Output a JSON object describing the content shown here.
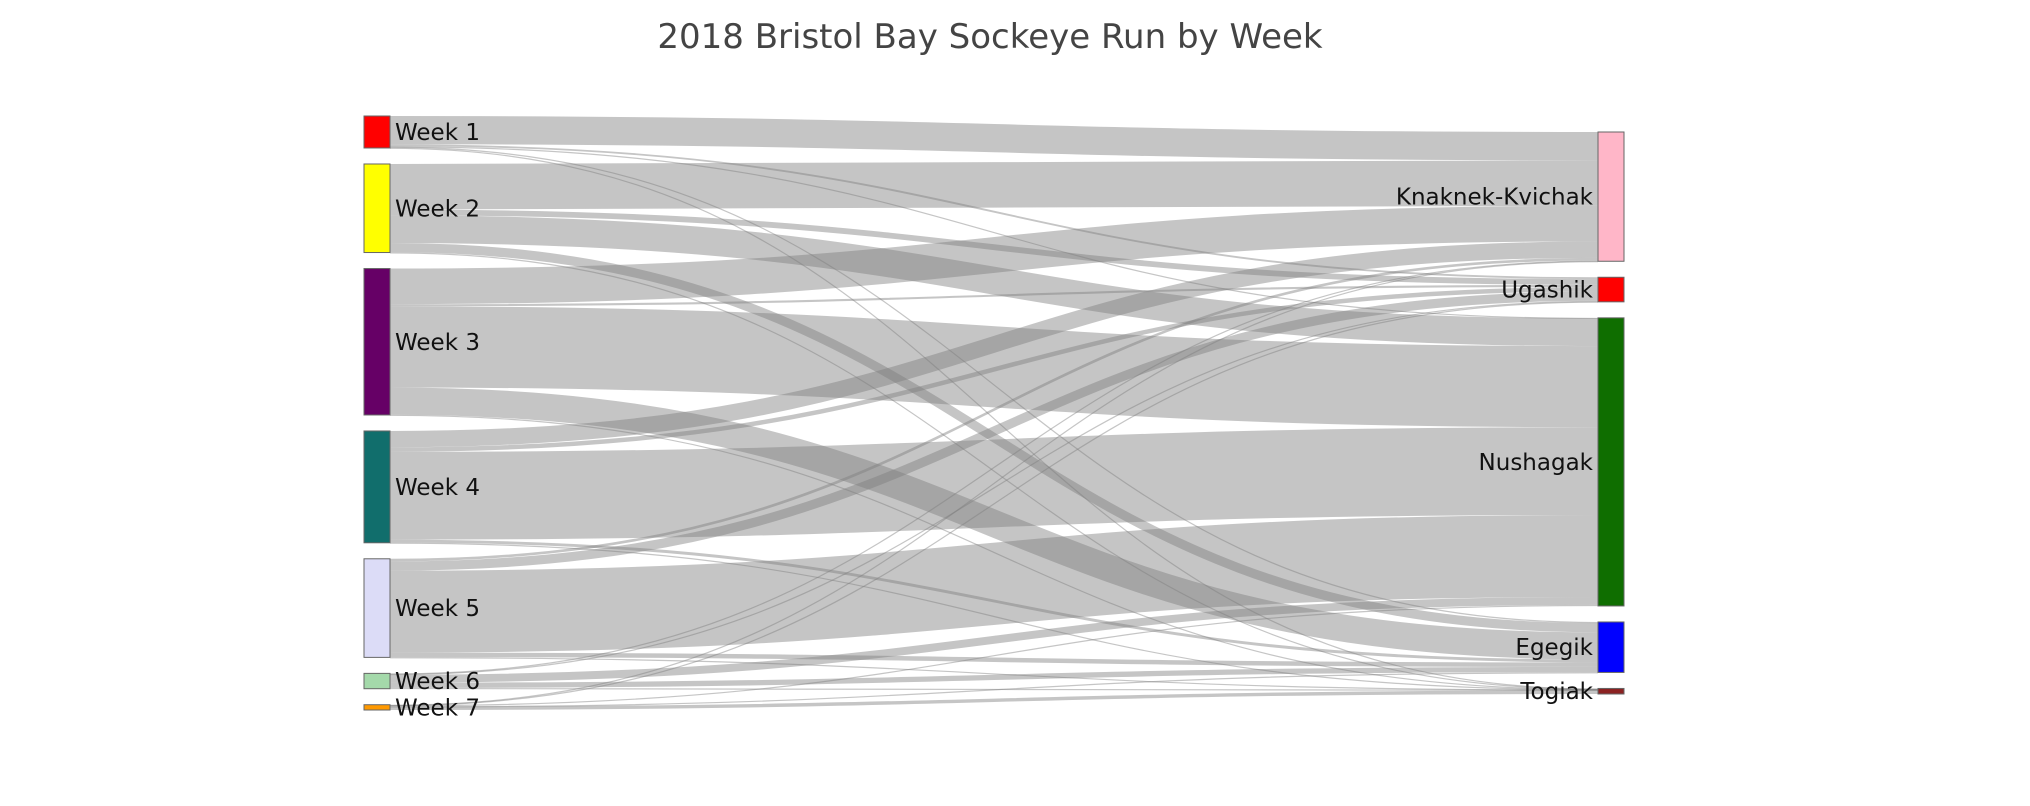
{
  "chart_data": {
    "type": "sankey",
    "title": "2018 Bristol Bay Sockeye Run by Week",
    "unit": "",
    "sources": [
      {
        "name": "Week 1",
        "color": "#ff0000"
      },
      {
        "name": "Week 2",
        "color": "#ffff00"
      },
      {
        "name": "Week 3",
        "color": "#660066"
      },
      {
        "name": "Week 4",
        "color": "#116e6c"
      },
      {
        "name": "Week 5",
        "color": "#dcdcf7"
      },
      {
        "name": "Week 6",
        "color": "#a4d9aa"
      },
      {
        "name": "Week 7",
        "color": "#ff9900"
      }
    ],
    "targets": [
      {
        "name": "Knaknek-Kvichak",
        "color": "#ffb6c8"
      },
      {
        "name": "Ugashik",
        "color": "#ff0000"
      },
      {
        "name": "Nushagak",
        "color": "#0f6e00"
      },
      {
        "name": "Egegik",
        "color": "#0000ff"
      },
      {
        "name": "Togiak",
        "color": "#8b2222"
      }
    ],
    "links": [
      {
        "source": "Week 1",
        "target": "Knaknek-Kvichak",
        "value": 1.07
      },
      {
        "source": "Week 1",
        "target": "Ugashik",
        "value": 0.07
      },
      {
        "source": "Week 1",
        "target": "Nushagak",
        "value": 0.02
      },
      {
        "source": "Week 1",
        "target": "Egegik",
        "value": 0.04
      },
      {
        "source": "Week 1",
        "target": "Togiak",
        "value": 0.01
      },
      {
        "source": "Week 2",
        "target": "Knaknek-Kvichak",
        "value": 1.72
      },
      {
        "source": "Week 2",
        "target": "Ugashik",
        "value": 0.22
      },
      {
        "source": "Week 2",
        "target": "Nushagak",
        "value": 1.05
      },
      {
        "source": "Week 2",
        "target": "Egegik",
        "value": 0.35
      },
      {
        "source": "Week 2",
        "target": "Togiak",
        "value": 0.01
      },
      {
        "source": "Week 3",
        "target": "Knaknek-Kvichak",
        "value": 1.35
      },
      {
        "source": "Week 3",
        "target": "Ugashik",
        "value": 0.08
      },
      {
        "source": "Week 3",
        "target": "Nushagak",
        "value": 3.07
      },
      {
        "source": "Week 3",
        "target": "Egegik",
        "value": 1.03
      },
      {
        "source": "Week 3",
        "target": "Togiak",
        "value": 0.01
      },
      {
        "source": "Week 4",
        "target": "Knaknek-Kvichak",
        "value": 0.62
      },
      {
        "source": "Week 4",
        "target": "Ugashik",
        "value": 0.17
      },
      {
        "source": "Week 4",
        "target": "Nushagak",
        "value": 3.32
      },
      {
        "source": "Week 4",
        "target": "Egegik",
        "value": 0.11
      },
      {
        "source": "Week 4",
        "target": "Togiak",
        "value": 0.01
      },
      {
        "source": "Week 5",
        "target": "Knaknek-Kvichak",
        "value": 0.1
      },
      {
        "source": "Week 5",
        "target": "Ugashik",
        "value": 0.35
      },
      {
        "source": "Week 5",
        "target": "Nushagak",
        "value": 3.1
      },
      {
        "source": "Week 5",
        "target": "Egegik",
        "value": 0.17
      },
      {
        "source": "Week 5",
        "target": "Togiak",
        "value": 0.01
      },
      {
        "source": "Week 6",
        "target": "Knaknek-Kvichak",
        "value": 0.02
      },
      {
        "source": "Week 6",
        "target": "Ugashik",
        "value": 0.03
      },
      {
        "source": "Week 6",
        "target": "Nushagak",
        "value": 0.3
      },
      {
        "source": "Week 6",
        "target": "Egegik",
        "value": 0.2
      },
      {
        "source": "Week 6",
        "target": "Togiak",
        "value": 0.03
      },
      {
        "source": "Week 7",
        "target": "Knaknek-Kvichak",
        "value": 0.01
      },
      {
        "source": "Week 7",
        "target": "Ugashik",
        "value": 0.01
      },
      {
        "source": "Week 7",
        "target": "Nushagak",
        "value": 0.04
      },
      {
        "source": "Week 7",
        "target": "Egegik",
        "value": 0.01
      },
      {
        "source": "Week 7",
        "target": "Togiak",
        "value": 0.13
      }
    ]
  }
}
